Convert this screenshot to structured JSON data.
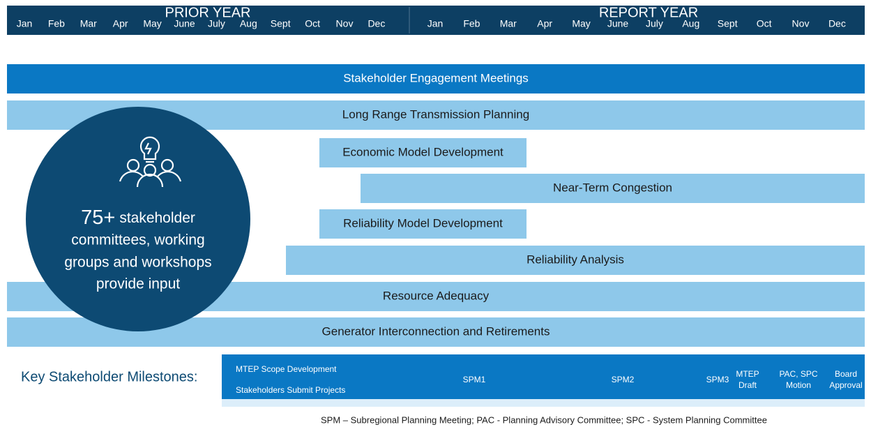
{
  "header": {
    "prior_year": "PRIOR YEAR",
    "report_year": "REPORT YEAR",
    "prior_months": [
      "Jan",
      "Feb",
      "Mar",
      "Apr",
      "May",
      "June",
      "July",
      "Aug",
      "Sept",
      "Oct",
      "Nov",
      "Dec"
    ],
    "report_months": [
      "Jan",
      "Feb",
      "Mar",
      "Apr",
      "May",
      "June",
      "July",
      "Aug",
      "Sept",
      "Oct",
      "Nov",
      "Dec"
    ]
  },
  "bars": [
    "Stakeholder Engagement Meetings",
    "Long Range Transmission Planning",
    "Economic Model Development",
    "Near-Term Congestion",
    "Reliability Model Development",
    "Reliability Analysis",
    "Resource Adequacy",
    "Generator Interconnection and Retirements"
  ],
  "circle": {
    "number": "75+",
    "lines": [
      "stakeholder",
      "committees, working",
      "groups and workshops",
      "provide input"
    ]
  },
  "milestones": {
    "title": "Key Stakeholder Milestones:",
    "items": [
      [
        "MTEP Scope Development",
        "Stakeholders Submit Projects"
      ],
      [
        "SPM1"
      ],
      [
        "SPM2"
      ],
      [
        "SPM3"
      ],
      [
        "MTEP",
        "Draft"
      ],
      [
        "PAC, SPC",
        "Motion"
      ],
      [
        "Board",
        "Approval"
      ]
    ]
  },
  "footnote": "SPM – Subregional Planning Meeting; PAC - Planning Advisory Committee; SPC - System Planning Committee"
}
